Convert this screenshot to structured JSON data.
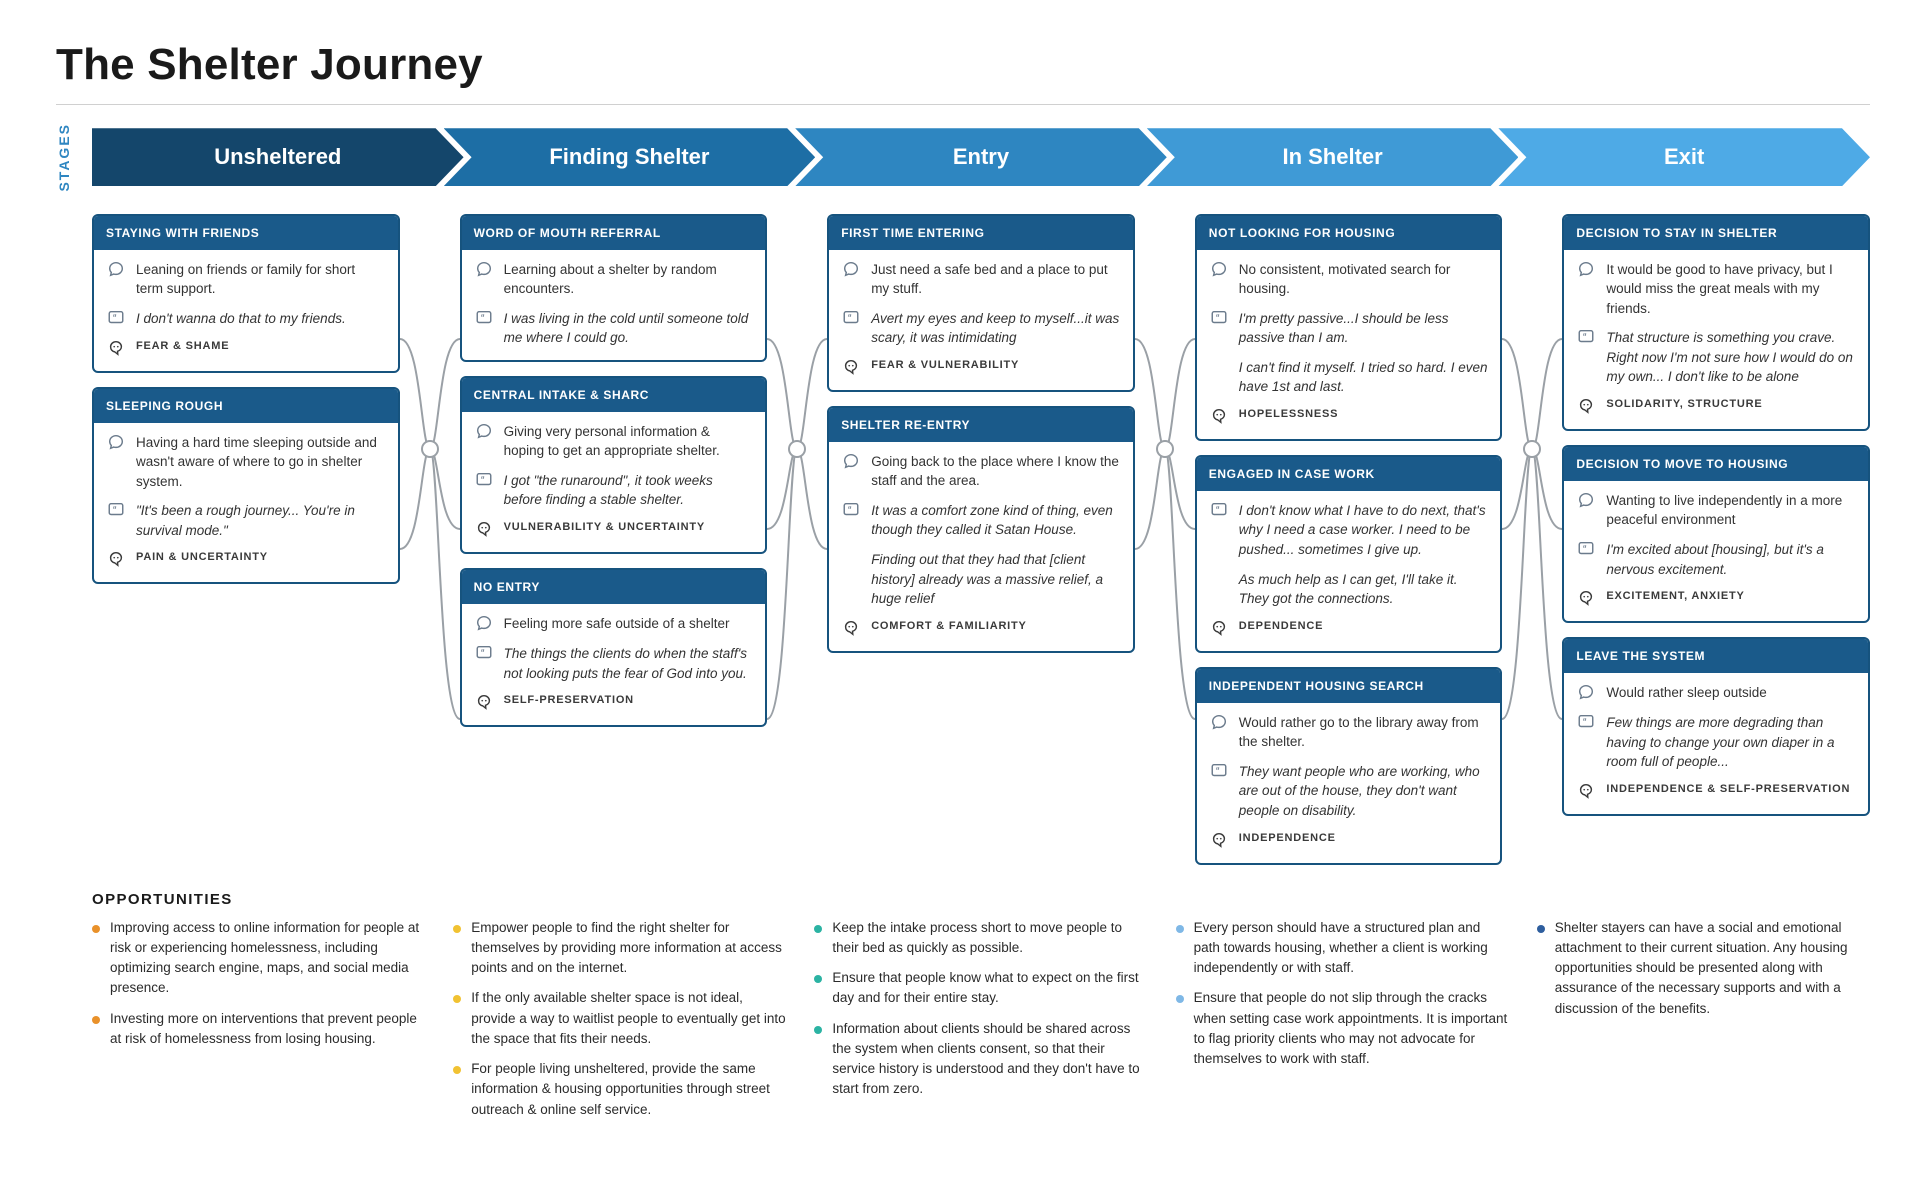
{
  "title": "The Shelter Journey",
  "stagesLabel": "STAGES",
  "stages": [
    {
      "label": "Unsheltered",
      "color": "#14466b"
    },
    {
      "label": "Finding Shelter",
      "color": "#1d6ea5"
    },
    {
      "label": "Entry",
      "color": "#2e86c1"
    },
    {
      "label": "In Shelter",
      "color": "#3f9ad6"
    },
    {
      "label": "Exit",
      "color": "#4eaae6"
    }
  ],
  "style": {
    "cardBorder": "#16537e",
    "cardHeaderBg": "#1a5a8a",
    "connector": "#9aa0a6",
    "hrule": "#d0d0d0",
    "titleFontSize": 44,
    "stageFontSize": 22,
    "cardHeaderFontSize": 12,
    "bodyFontSize": 13.5,
    "feelingFontSize": 11
  },
  "columns": [
    {
      "cards": [
        {
          "title": "STAYING WITH FRIENDS",
          "speech": "Leaning on friends or family for short term support.",
          "quotes": [
            "I don't wanna do that to my friends."
          ],
          "feeling": "FEAR & SHAME"
        },
        {
          "title": "SLEEPING ROUGH",
          "speech": "Having a hard time sleeping outside and wasn't aware of where to go in shelter system.",
          "quotes": [
            "\"It's been a rough journey... You're in survival mode.\""
          ],
          "feeling": "PAIN & UNCERTAINTY"
        }
      ]
    },
    {
      "cards": [
        {
          "title": "WORD OF MOUTH REFERRAL",
          "speech": "Learning about a shelter by random encounters.",
          "quotes": [
            "I was living in the cold until someone told me where I could go."
          ],
          "feeling": null
        },
        {
          "title": "CENTRAL INTAKE & SHARC",
          "speech": "Giving very personal information & hoping to get an appropriate shelter.",
          "quotes": [
            "I got \"the runaround\", it took weeks before finding a stable shelter."
          ],
          "feeling": "VULNERABILITY & UNCERTAINTY"
        },
        {
          "title": "NO ENTRY",
          "speech": "Feeling more safe outside of a shelter",
          "quotes": [
            "The things the clients do when the staff's not looking puts the fear of God into you."
          ],
          "feeling": "SELF-PRESERVATION"
        }
      ]
    },
    {
      "cards": [
        {
          "title": "FIRST TIME ENTERING",
          "speech": "Just need a safe bed and a place to put my stuff.",
          "quotes": [
            "Avert my eyes and keep to myself...it was scary, it was intimidating"
          ],
          "feeling": "FEAR & VULNERABILITY"
        },
        {
          "title": "SHELTER RE-ENTRY",
          "speech": "Going back to the place where I know the staff and the area.",
          "quotes": [
            "It was a comfort zone kind of thing, even though they called it Satan House.",
            "Finding out that they had that [client history] already was a massive relief, a huge relief"
          ],
          "feeling": "COMFORT & FAMILIARITY"
        }
      ]
    },
    {
      "cards": [
        {
          "title": "NOT LOOKING FOR HOUSING",
          "speech": "No consistent, motivated search for housing.",
          "quotes": [
            "I'm pretty passive...I should be less passive than I am.",
            "I can't find it myself. I tried so hard. I even have 1st and last."
          ],
          "feeling": "HOPELESSNESS"
        },
        {
          "title": "ENGAGED IN CASE WORK",
          "speech": null,
          "quotes": [
            "I don't know what I have to do next, that's why I need a case worker. I need to be pushed... sometimes I give up.",
            "As much help as I can get, I'll take it. They got the connections."
          ],
          "feeling": "DEPENDENCE"
        },
        {
          "title": "INDEPENDENT HOUSING SEARCH",
          "speech": "Would rather go to the library away from the shelter.",
          "quotes": [
            "They want people who are working, who are out of the house, they don't want people on disability."
          ],
          "feeling": "INDEPENDENCE"
        }
      ]
    },
    {
      "cards": [
        {
          "title": "DECISION TO STAY IN SHELTER",
          "speech": "It would be good to have privacy, but I would miss the great meals with my friends.",
          "quotes": [
            "That structure is something you crave. Right now I'm not sure how I would do on my own... I don't like to be alone"
          ],
          "feeling": "SOLIDARITY, STRUCTURE"
        },
        {
          "title": "DECISION TO MOVE TO HOUSING",
          "speech": "Wanting to live independently in a more peaceful environment",
          "quotes": [
            "I'm excited about [housing], but it's a nervous excitement."
          ],
          "feeling": "EXCITEMENT, ANXIETY"
        },
        {
          "title": "LEAVE THE SYSTEM",
          "speech": "Would rather sleep outside",
          "quotes": [
            "Few things are more degrading than having to change your own diaper in a room full of people..."
          ],
          "feeling": "INDEPENDENCE & SELF-PRESERVATION"
        }
      ]
    }
  ],
  "opportunitiesTitle": "OPPORTUNITIES",
  "opportunities": [
    {
      "dot": "#e9912a",
      "items": [
        "Improving access to online information for people at risk or experiencing homelessness, including optimizing search engine, maps, and social media presence.",
        "Investing more on interventions that prevent people at risk of homelessness from losing housing."
      ]
    },
    {
      "dot": "#f1c232",
      "items": [
        "Empower people to find the right shelter for themselves by providing more information at access points and on the internet.",
        "If the only available shelter space is not ideal, provide a way to waitlist people to eventually get into the space that fits their needs.",
        "For people living unsheltered, provide the same information & housing opportunities through street outreach & online self service."
      ]
    },
    {
      "dot": "#2bb3a3",
      "items": [
        "Keep the intake process short to move people to their bed as quickly as possible.",
        "Ensure that people know what to expect on the first day and for their entire stay.",
        "Information about clients should be shared across the system when clients consent, so that their service history is understood and they don't have to start from zero."
      ]
    },
    {
      "dot": "#7fb8e6",
      "items": [
        "Every person should have a structured plan and path towards housing, whether a client is working independently or with staff.",
        "Ensure that people do not slip through the cracks when setting case work appointments. It is important to flag priority clients who may not advocate for themselves to work with staff."
      ]
    },
    {
      "dot": "#2e5e9e",
      "items": [
        "Shelter stayers can have a social and emotional attachment to their current situation. Any housing opportunities should be presented along with assurance of the necessary supports and with a discussion of the benefits."
      ]
    }
  ]
}
